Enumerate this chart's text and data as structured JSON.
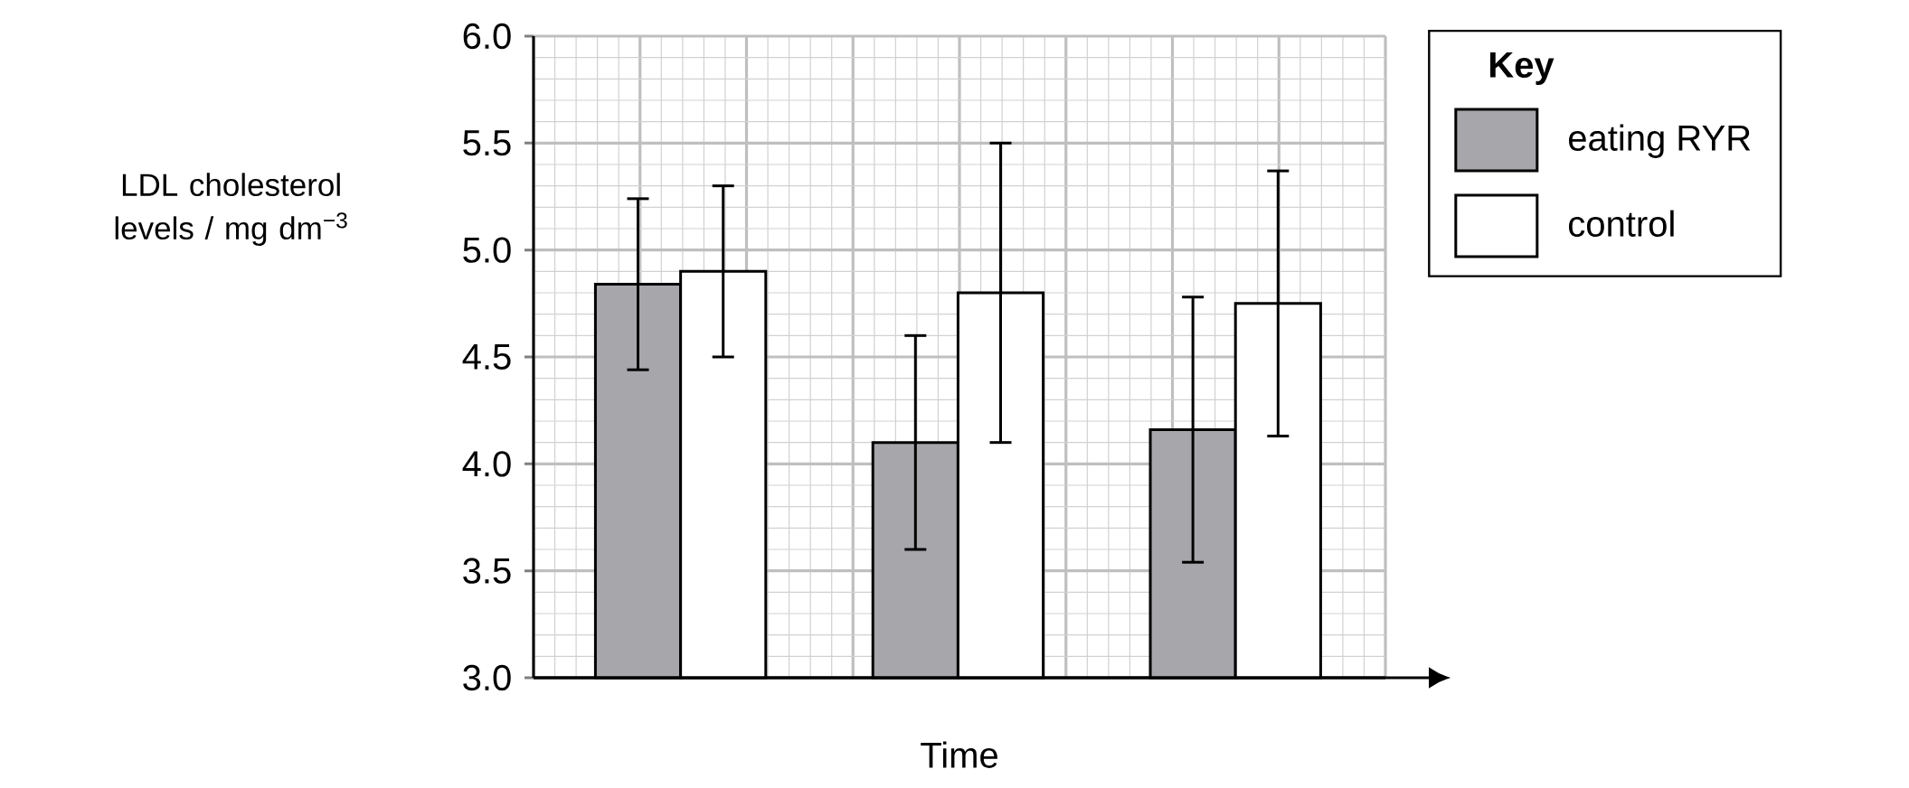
{
  "chart_data": {
    "type": "bar",
    "xlabel": "Time",
    "ylabel": "LDL cholesterol levels / mg dm$^{−3}$",
    "legend_title": "Key",
    "categories": [
      null,
      null,
      null
    ],
    "series": [
      {
        "name": "eating RYR",
        "color": "#a7a6ab",
        "values": [
          4.84,
          4.1,
          4.16
        ],
        "errors": [
          0.4,
          0.5,
          0.62
        ]
      },
      {
        "name": "control",
        "color": "#ffffff",
        "values": [
          4.9,
          4.8,
          4.75
        ],
        "errors": [
          0.4,
          0.7,
          0.62
        ]
      }
    ],
    "ylim": [
      3.0,
      6.0
    ],
    "yticks": [
      {
        "value": 3,
        "label": "3.0"
      },
      3.5,
      {
        "value": 4,
        "label": "4.0"
      },
      4.5,
      {
        "value": 5,
        "label": "5.0"
      },
      5.5,
      {
        "value": 6,
        "label": "6.0"
      }
    ],
    "grid": true,
    "legend": "top right",
    "tick_labels": "y"
  }
}
